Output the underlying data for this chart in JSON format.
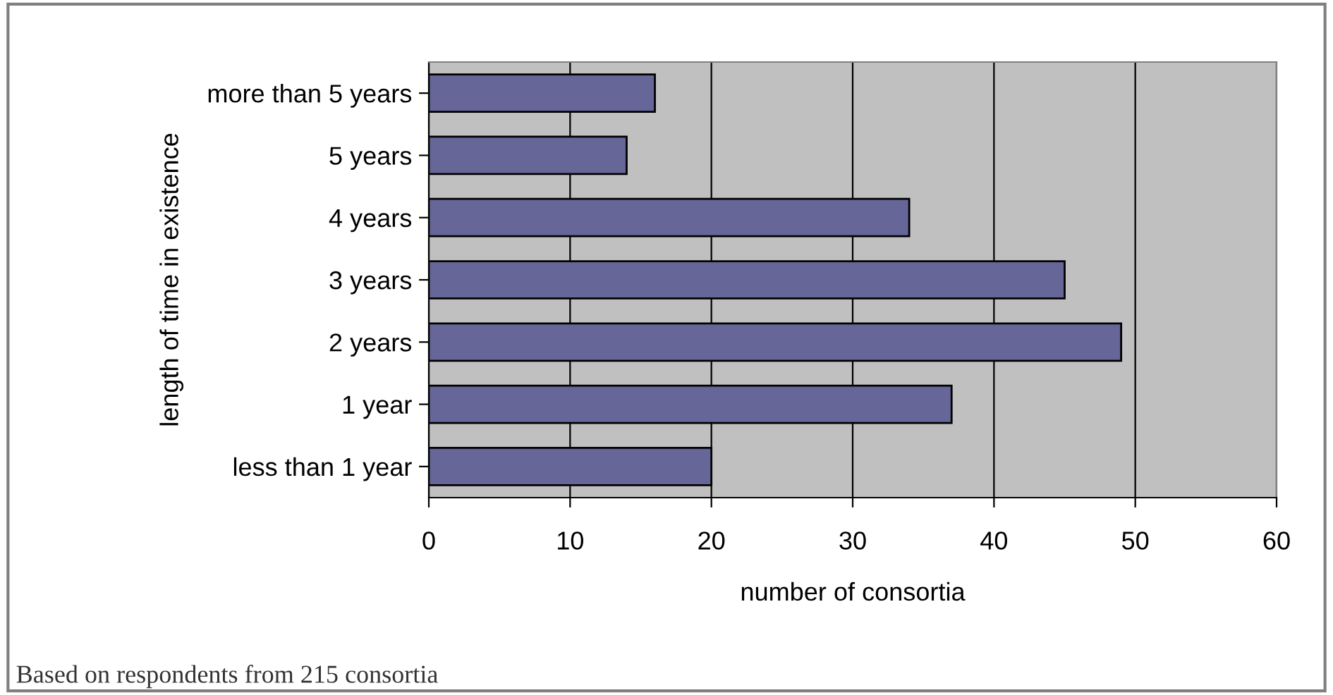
{
  "chart_data": {
    "type": "bar",
    "orientation": "horizontal",
    "xlabel": "number of consortia",
    "ylabel": "length of time in existence",
    "categories": [
      "more than 5 years",
      "5 years",
      "4 years",
      "3 years",
      "2 years",
      "1 year",
      "less than 1 year"
    ],
    "values": [
      16,
      14,
      34,
      45,
      49,
      37,
      20
    ],
    "color": "#666699",
    "xlim": [
      0,
      60
    ],
    "xticks": [
      0,
      10,
      20,
      30,
      40,
      50,
      60
    ],
    "grid": "x",
    "legend": false,
    "annotations": [
      "Based on respondents from 215 consortia"
    ]
  }
}
